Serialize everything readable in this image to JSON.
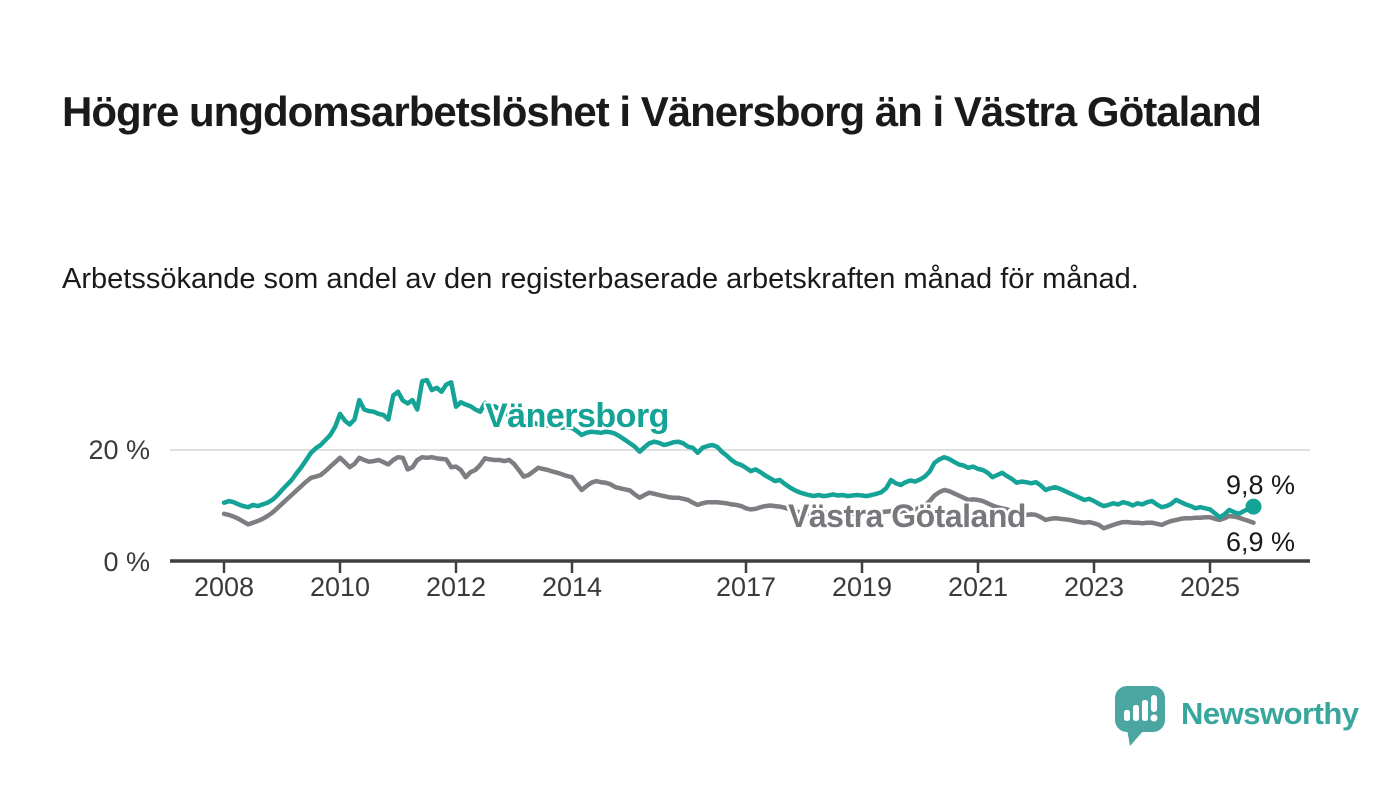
{
  "header": {
    "title": "Högre ungdomsarbetslöshet i Vänersborg än i Västra Götaland",
    "subtitle": "Arbetssökande som andel av den registerbaserade arbetskraften månad för månad."
  },
  "colors": {
    "vanersborg_line": "#14a396",
    "vastra_line": "#7d7d82",
    "vastra_label": "#77777c",
    "grid": "#e0e0e0",
    "axis": "#3f3f3f",
    "text": "#1a1a1a",
    "logo_bubble": "#4ba6a1",
    "logo_text": "#37a69c"
  },
  "axis_labels": {
    "y20": "20 %",
    "y0": "0 %"
  },
  "end_labels": {
    "vanersborg": "9,8 %",
    "vastra": "6,9 %"
  },
  "footer": {
    "brand": "Newsworthy"
  },
  "chart_data": {
    "type": "line",
    "title": "Högre ungdomsarbetslöshet i Vänersborg än i Västra Götaland",
    "subtitle": "Arbetssökande som andel av den registerbaserade arbetskraften månad för månad.",
    "unit": "%",
    "frequency": "monthly",
    "x_start": "2008-01",
    "x_end": "2025-10",
    "x_ticks": [
      2008,
      2010,
      2012,
      2014,
      2017,
      2019,
      2021,
      2023,
      2025
    ],
    "y_ticks": [
      0,
      20
    ],
    "ylim": [
      0,
      34
    ],
    "grid": "y-only",
    "legend_position": "inline-labels",
    "series": [
      {
        "name": "Vänersborg",
        "color": "#14a396",
        "end_label": "9,8 %",
        "latest_value": 9.8,
        "values": [
          10.5,
          10.8,
          10.6,
          10.2,
          9.9,
          9.7,
          10.1,
          9.9,
          10.2,
          10.5,
          11.0,
          11.8,
          12.8,
          13.7,
          14.6,
          15.8,
          16.9,
          18.2,
          19.5,
          20.3,
          20.9,
          21.8,
          22.7,
          24.2,
          26.5,
          25.3,
          24.6,
          25.5,
          29.0,
          27.3,
          27.0,
          26.9,
          26.5,
          26.3,
          25.5,
          29.8,
          30.5,
          28.9,
          28.4,
          29.0,
          27.3,
          32.4,
          32.6,
          30.8,
          31.2,
          30.5,
          31.8,
          32.2,
          27.8,
          28.6,
          28.2,
          27.9,
          27.3,
          26.9,
          28.5,
          27.7,
          27.9,
          27.3,
          26.8,
          26.2,
          26.0,
          25.6,
          25.2,
          25.4,
          24.9,
          24.6,
          24.8,
          24.4,
          24.2,
          24.4,
          24.0,
          24.2,
          24.0,
          23.4,
          22.7,
          23.1,
          23.3,
          23.2,
          23.1,
          23.3,
          23.2,
          22.9,
          22.4,
          21.8,
          21.2,
          20.6,
          19.7,
          20.5,
          21.2,
          21.5,
          21.3,
          20.9,
          21.1,
          21.4,
          21.5,
          21.2,
          20.6,
          20.4,
          19.5,
          20.4,
          20.7,
          20.9,
          20.6,
          19.7,
          19.0,
          18.2,
          17.6,
          17.3,
          16.8,
          16.2,
          16.5,
          16.0,
          15.4,
          14.9,
          14.4,
          14.6,
          13.9,
          13.3,
          12.8,
          12.4,
          12.1,
          11.9,
          11.7,
          11.9,
          11.7,
          11.8,
          12.0,
          11.8,
          11.9,
          11.7,
          11.8,
          11.9,
          11.8,
          11.7,
          11.9,
          12.1,
          12.4,
          13.1,
          14.6,
          14.0,
          13.7,
          14.2,
          14.5,
          14.3,
          14.7,
          15.2,
          16.1,
          17.7,
          18.3,
          18.7,
          18.4,
          17.9,
          17.4,
          17.2,
          16.8,
          17.0,
          16.6,
          16.4,
          15.9,
          15.1,
          15.5,
          15.9,
          15.3,
          14.8,
          14.1,
          14.3,
          14.2,
          14.0,
          14.2,
          13.6,
          12.8,
          13.1,
          13.3,
          13.0,
          12.6,
          12.2,
          11.8,
          11.4,
          11.0,
          11.2,
          10.8,
          10.3,
          9.9,
          10.1,
          10.4,
          10.2,
          10.6,
          10.4,
          10.0,
          10.4,
          10.2,
          10.6,
          10.8,
          10.2,
          9.7,
          9.9,
          10.3,
          11.0,
          10.6,
          10.2,
          9.9,
          9.5,
          9.7,
          9.5,
          9.3,
          8.6,
          7.9,
          8.4,
          9.2,
          8.8,
          8.5,
          9.0,
          9.4,
          9.8
        ]
      },
      {
        "name": "Västra Götaland",
        "color": "#7d7d82",
        "end_label": "6,9 %",
        "latest_value": 6.9,
        "values": [
          8.5,
          8.3,
          8.0,
          7.6,
          7.1,
          6.6,
          6.9,
          7.2,
          7.6,
          8.1,
          8.7,
          9.5,
          10.3,
          11.1,
          11.9,
          12.7,
          13.5,
          14.3,
          15.0,
          15.2,
          15.5,
          16.2,
          17.0,
          17.8,
          18.6,
          17.8,
          16.9,
          17.5,
          18.6,
          18.2,
          17.9,
          18.0,
          18.2,
          17.8,
          17.4,
          18.2,
          18.7,
          18.6,
          16.5,
          16.9,
          18.2,
          18.7,
          18.6,
          18.7,
          18.5,
          18.4,
          18.3,
          16.9,
          17.0,
          16.4,
          15.1,
          16.0,
          16.4,
          17.3,
          18.5,
          18.3,
          18.2,
          18.2,
          18.0,
          18.2,
          17.5,
          16.4,
          15.2,
          15.5,
          16.1,
          16.8,
          16.6,
          16.4,
          16.1,
          15.9,
          15.6,
          15.3,
          15.1,
          13.9,
          12.8,
          13.5,
          14.1,
          14.4,
          14.2,
          14.1,
          13.8,
          13.3,
          13.1,
          12.9,
          12.7,
          12.0,
          11.4,
          11.9,
          12.3,
          12.1,
          11.9,
          11.7,
          11.5,
          11.4,
          11.4,
          11.2,
          11.0,
          10.5,
          10.1,
          10.4,
          10.6,
          10.6,
          10.6,
          10.5,
          10.4,
          10.2,
          10.1,
          9.9,
          9.5,
          9.3,
          9.4,
          9.7,
          9.9,
          10.0,
          9.9,
          9.8,
          9.6,
          9.3,
          9.0,
          8.8,
          8.7,
          8.5,
          8.4,
          8.5,
          8.7,
          8.8,
          8.9,
          8.8,
          8.7,
          8.6,
          8.5,
          8.6,
          8.7,
          8.6,
          8.6,
          8.7,
          8.8,
          8.9,
          9.0,
          8.9,
          8.9,
          9.0,
          9.1,
          9.3,
          9.6,
          10.0,
          10.8,
          11.8,
          12.4,
          12.8,
          12.6,
          12.2,
          11.8,
          11.4,
          11.0,
          11.1,
          11.0,
          10.8,
          10.4,
          10.0,
          9.7,
          9.5,
          9.3,
          9.0,
          8.7,
          8.5,
          8.3,
          8.4,
          8.3,
          7.9,
          7.4,
          7.6,
          7.7,
          7.6,
          7.5,
          7.4,
          7.2,
          7.0,
          6.9,
          7.0,
          6.8,
          6.5,
          5.9,
          6.2,
          6.5,
          6.8,
          7.0,
          7.0,
          6.9,
          6.9,
          6.8,
          6.9,
          6.9,
          6.7,
          6.5,
          6.9,
          7.2,
          7.4,
          7.6,
          7.7,
          7.7,
          7.8,
          7.8,
          7.9,
          7.9,
          7.6,
          7.4,
          7.7,
          8.1,
          8.0,
          7.8,
          7.5,
          7.2,
          6.9
        ]
      }
    ]
  }
}
